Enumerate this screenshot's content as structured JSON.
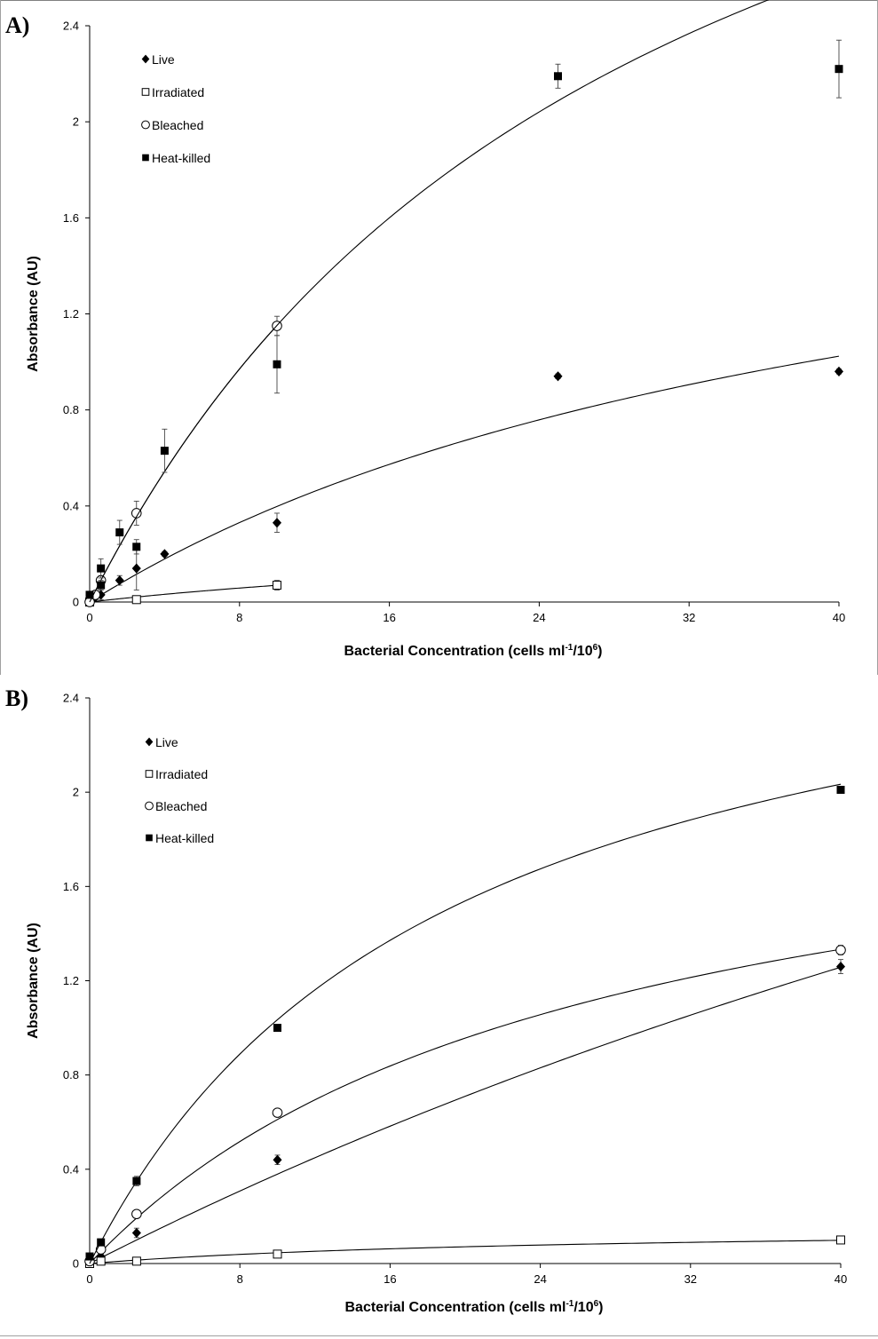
{
  "chart_data": [
    {
      "panel": "A)",
      "type": "scatter",
      "xlabel": "Bacterial Concentration (cells ml",
      "xlabel_sup1": "-1",
      "xlabel_mid": "/10",
      "xlabel_sup2": "6",
      "xlabel_end": ")",
      "ylabel": "Absorbance (AU)",
      "xlim": [
        0,
        40
      ],
      "ylim": [
        0,
        2.4
      ],
      "xticks": [
        "0",
        "8",
        "16",
        "24",
        "32",
        "40"
      ],
      "yticks": [
        "0",
        "0.4",
        "0.8",
        "1.2",
        "1.6",
        "2",
        "2.4"
      ],
      "grid": false,
      "legend_position": "top-left",
      "series": [
        {
          "name": "Live",
          "marker": "diamond-filled",
          "x": [
            0,
            0.3,
            0.6,
            1.6,
            2.5,
            4,
            10,
            25,
            40
          ],
          "y": [
            0.01,
            0.02,
            0.03,
            0.09,
            0.14,
            0.2,
            0.33,
            0.94,
            0.96
          ],
          "error": [
            0.01,
            0.01,
            0.02,
            0.02,
            0.09,
            0.01,
            0.04,
            0.01,
            0.01
          ],
          "fit": {
            "vmax": 2.15,
            "k": 44
          }
        },
        {
          "name": "Irradiated",
          "marker": "square-open",
          "x": [
            0,
            2.5,
            10
          ],
          "y": [
            0.0,
            0.01,
            0.07
          ],
          "error": [
            0.0,
            0.01,
            0.02
          ],
          "fit": {
            "vmax": 0.32,
            "k": 36
          }
        },
        {
          "name": "Bleached",
          "marker": "circle-open",
          "x": [
            0,
            0.3,
            0.6,
            2.5,
            10
          ],
          "y": [
            0.0,
            0.03,
            0.09,
            0.37,
            1.15
          ],
          "error": [
            0.01,
            0.01,
            0.02,
            0.05,
            0.04
          ],
          "fit": {
            "vmax": 4.55,
            "k": 29.5
          }
        },
        {
          "name": "Heat-killed",
          "marker": "square-filled",
          "x": [
            0,
            0.6,
            0.6,
            1.6,
            2.5,
            4,
            10,
            25,
            40
          ],
          "y": [
            0.03,
            0.07,
            0.14,
            0.29,
            0.23,
            0.63,
            0.99,
            2.19,
            2.22
          ],
          "error": [
            0.01,
            0.02,
            0.04,
            0.05,
            0.03,
            0.09,
            0.12,
            0.05,
            0.12
          ],
          "fit": {
            "vmax": 4.55,
            "k": 29.5
          }
        }
      ]
    },
    {
      "panel": "B)",
      "type": "scatter",
      "xlabel": "Bacterial Concentration (cells ml",
      "xlabel_sup1": "-1",
      "xlabel_mid": "/10",
      "xlabel_sup2": "6",
      "xlabel_end": ")",
      "ylabel": "Absorbance (AU)",
      "xlim": [
        0,
        40
      ],
      "ylim": [
        0,
        2.4
      ],
      "xticks": [
        "0",
        "8",
        "16",
        "24",
        "32",
        "40"
      ],
      "yticks": [
        "0",
        "0.4",
        "0.8",
        "1.2",
        "1.6",
        "2",
        "2.4"
      ],
      "grid": false,
      "legend_position": "top-left",
      "series": [
        {
          "name": "Live",
          "marker": "diamond-filled",
          "x": [
            0,
            0.6,
            2.5,
            10,
            40
          ],
          "y": [
            0.01,
            0.03,
            0.13,
            0.44,
            1.26
          ],
          "error": [
            0.01,
            0.01,
            0.02,
            0.02,
            0.03
          ],
          "fit": {
            "vmax": 5.5,
            "k": 135
          }
        },
        {
          "name": "Irradiated",
          "marker": "square-open",
          "x": [
            0,
            0.6,
            2.5,
            10,
            40
          ],
          "y": [
            0.0,
            0.01,
            0.01,
            0.04,
            0.1
          ],
          "error": [
            0.0,
            0.0,
            0.0,
            0.0,
            0.01
          ],
          "fit": {
            "vmax": 0.16,
            "k": 25
          }
        },
        {
          "name": "Bleached",
          "marker": "circle-open",
          "x": [
            0,
            0.6,
            2.5,
            10,
            40
          ],
          "y": [
            0.01,
            0.06,
            0.21,
            0.64,
            1.33
          ],
          "error": [
            0.0,
            0.0,
            0.01,
            0.01,
            0.02
          ],
          "fit": {
            "vmax": 2.2,
            "k": 26
          }
        },
        {
          "name": "Heat-killed",
          "marker": "square-filled",
          "x": [
            0,
            0.6,
            2.5,
            10,
            40
          ],
          "y": [
            0.03,
            0.09,
            0.35,
            1.0,
            2.01
          ],
          "error": [
            0.0,
            0.01,
            0.02,
            0.01,
            0.01
          ],
          "fit": {
            "vmax": 3.0,
            "k": 19
          }
        }
      ]
    }
  ]
}
